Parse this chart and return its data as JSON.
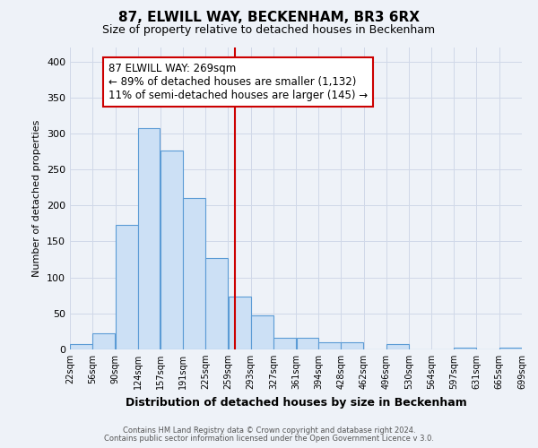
{
  "title": "87, ELWILL WAY, BECKENHAM, BR3 6RX",
  "subtitle": "Size of property relative to detached houses in Beckenham",
  "xlabel": "Distribution of detached houses by size in Beckenham",
  "ylabel": "Number of detached properties",
  "bar_left_edges": [
    22,
    56,
    90,
    124,
    157,
    191,
    225,
    259,
    293,
    327,
    361,
    394,
    428,
    462,
    496,
    530,
    564,
    597,
    631,
    665
  ],
  "bar_widths": [
    34,
    34,
    34,
    33,
    34,
    34,
    34,
    34,
    34,
    34,
    33,
    34,
    34,
    34,
    34,
    34,
    33,
    34,
    34,
    34
  ],
  "bar_heights": [
    8,
    22,
    173,
    308,
    276,
    210,
    127,
    73,
    47,
    16,
    16,
    10,
    10,
    0,
    8,
    0,
    0,
    3,
    0,
    3
  ],
  "bar_facecolor": "#cce0f5",
  "bar_edgecolor": "#5b9bd5",
  "vline_x": 269,
  "vline_color": "#cc0000",
  "annotation_line1": "87 ELWILL WAY: 269sqm",
  "annotation_line2": "← 89% of detached houses are smaller (1,132)",
  "annotation_line3": "11% of semi-detached houses are larger (145) →",
  "annotation_box_edgecolor": "#cc0000",
  "annotation_box_facecolor": "#ffffff",
  "xlim": [
    22,
    699
  ],
  "ylim": [
    0,
    420
  ],
  "yticks": [
    0,
    50,
    100,
    150,
    200,
    250,
    300,
    350,
    400
  ],
  "xtick_labels": [
    "22sqm",
    "56sqm",
    "90sqm",
    "124sqm",
    "157sqm",
    "191sqm",
    "225sqm",
    "259sqm",
    "293sqm",
    "327sqm",
    "361sqm",
    "394sqm",
    "428sqm",
    "462sqm",
    "496sqm",
    "530sqm",
    "564sqm",
    "597sqm",
    "631sqm",
    "665sqm",
    "699sqm"
  ],
  "xtick_positions": [
    22,
    56,
    90,
    124,
    157,
    191,
    225,
    259,
    293,
    327,
    361,
    394,
    428,
    462,
    496,
    530,
    564,
    597,
    631,
    665,
    699
  ],
  "footer1": "Contains HM Land Registry data © Crown copyright and database right 2024.",
  "footer2": "Contains public sector information licensed under the Open Government Licence v 3.0.",
  "background_color": "#eef2f8",
  "grid_color": "#d0d8e8",
  "title_fontsize": 11,
  "subtitle_fontsize": 9,
  "annotation_fontsize": 8.5
}
